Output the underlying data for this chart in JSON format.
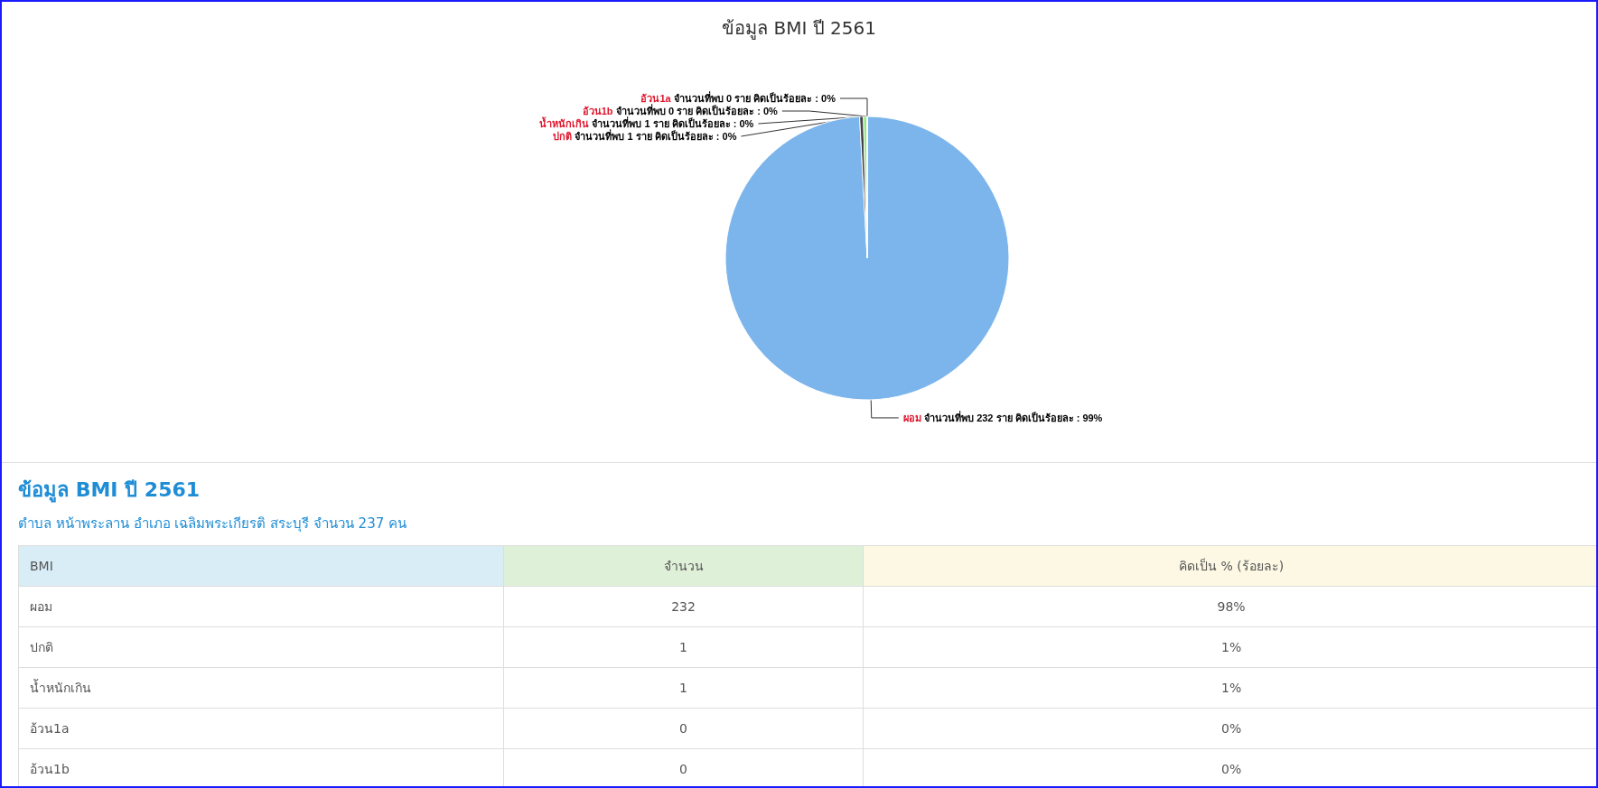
{
  "chart_data": [
    {
      "type": "pie",
      "title": "ข้อมูล BMI ปี 2561",
      "categories": [
        "ผอม",
        "ปกติ",
        "น้ำหนักเกิน",
        "อ้วน1a",
        "อ้วน1b"
      ],
      "values": [
        232,
        1,
        1,
        0,
        0
      ],
      "colors": [
        "#7cb5ec",
        "#434348",
        "#90ed7d",
        "#f7a35c",
        "#8085e9"
      ],
      "value_labels": [
        "จำนวนที่พบ 232 ราย คิดเป็นร้อยละ : 99%",
        "จำนวนที่พบ 1 ราย คิดเป็นร้อยละ : 0%",
        "จำนวนที่พบ 1 ราย คิดเป็นร้อยละ : 0%",
        "จำนวนที่พบ 0 ราย คิดเป็นร้อยละ : 0%",
        "จำนวนที่พบ 0 ราย คิดเป็นร้อยละ : 0%"
      ],
      "legend": false
    },
    {
      "type": "other",
      "title": "ข้อมูล BMI ปี 2561",
      "subtitle": "ตำบล หน้าพระลาน อำเภอ เฉลิมพระเกียรติ สระบุรี จำนวน 237 คน",
      "annotations": [
        "BMI",
        "จำนวน",
        "คิดเป็น % (ร้อยละ)",
        "ผอม",
        "232",
        "98%",
        "ปกติ",
        "1",
        "1%",
        "น้ำหนักเกิน",
        "1",
        "1%",
        "อ้วน1a",
        "0",
        "0%",
        "อ้วน1b",
        "0",
        "0%"
      ]
    }
  ]
}
